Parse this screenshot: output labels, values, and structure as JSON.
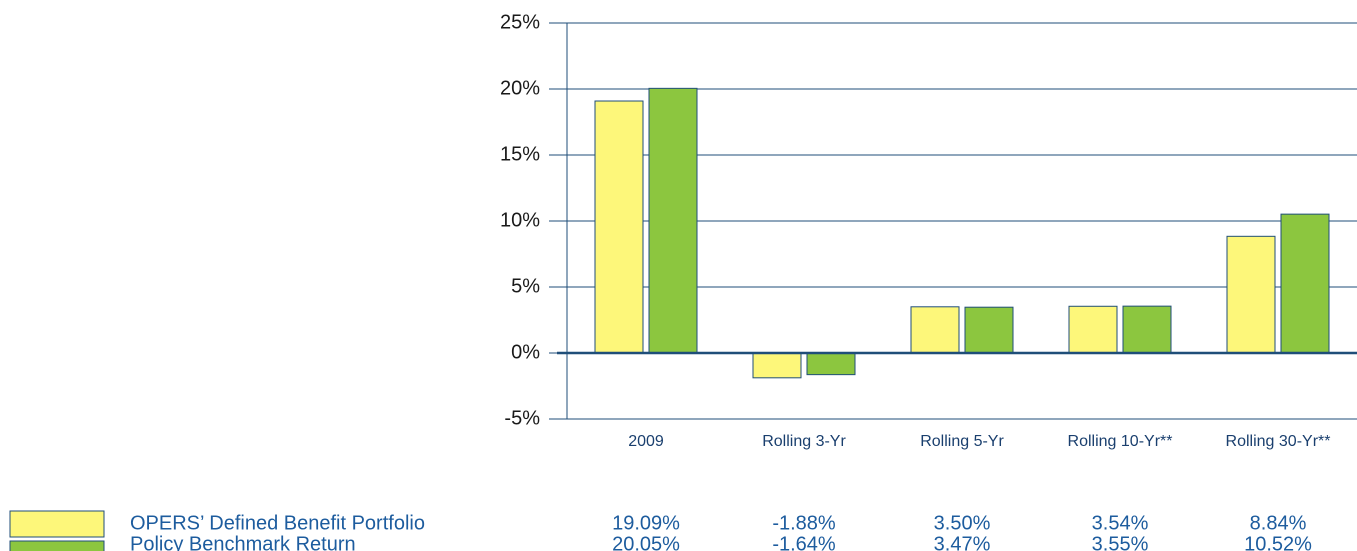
{
  "chart_data": {
    "type": "bar",
    "categories": [
      "2009",
      "Rolling 3-Yr",
      "Rolling 5-Yr",
      "Rolling 10-Yr**",
      "Rolling 30-Yr**"
    ],
    "series": [
      {
        "name": "OPERS’ Defined Benefit Portfolio",
        "color": "#fdf77a",
        "values": [
          19.09,
          -1.88,
          3.5,
          3.54,
          8.84
        ],
        "value_labels": [
          "19.09%",
          "-1.88%",
          "3.50%",
          "3.54%",
          "8.84%"
        ]
      },
      {
        "name": "Policy Benchmark Return",
        "color": "#8cc63f",
        "values": [
          20.05,
          -1.64,
          3.47,
          3.55,
          10.52
        ],
        "value_labels": [
          "20.05%",
          "-1.64%",
          "3.47%",
          "3.55%",
          "10.52%"
        ]
      }
    ],
    "ylim": [
      -5,
      25
    ],
    "yticks": [
      {
        "value": -5,
        "label": "-5%"
      },
      {
        "value": 0,
        "label": "0%"
      },
      {
        "value": 5,
        "label": "5%"
      },
      {
        "value": 10,
        "label": "10%"
      },
      {
        "value": 15,
        "label": "15%"
      },
      {
        "value": 20,
        "label": "20%"
      },
      {
        "value": 25,
        "label": "25%"
      }
    ],
    "grid": true
  }
}
